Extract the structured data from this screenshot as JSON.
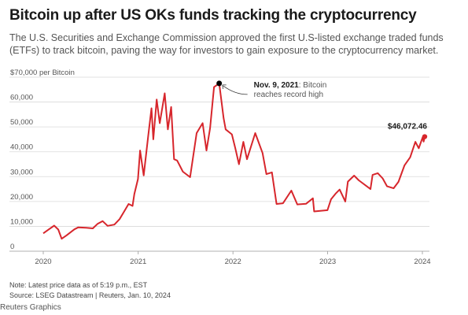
{
  "header": {
    "title": "Bitcoin up after US OKs funds tracking the cryptocurrency",
    "subtitle": "The U.S. Securities and Exchange Commission approved the first U.S-listed exchange traded funds (ETFs) to track bitcoin, paving the way for investors to gain exposure to the cryptocurrency market."
  },
  "footer": {
    "note": "Note: Latest price data as of 5:19 p.m., EST",
    "source": "Source: LSEG Datastream | Reuters, Jan. 10, 2024",
    "credit": "Reuters Graphics"
  },
  "colors": {
    "line": "#d7262c",
    "grid": "#d9d9d9",
    "text": "#555555"
  },
  "chart_data": {
    "type": "line",
    "title": "Bitcoin up after US OKs funds tracking the cryptocurrency",
    "ylabel": "$70,000 per Bitcoin",
    "ylim": [
      0,
      70000
    ],
    "xlim": [
      "2020-01-01",
      "2024-01-10"
    ],
    "x_ticks": [
      "2020",
      "2021",
      "2022",
      "2023",
      "2024"
    ],
    "y_ticks": [
      "0",
      "10,000",
      "20,000",
      "30,000",
      "40,000",
      "50,000",
      "60,000",
      "$70,000 per Bitcoin"
    ],
    "grid": "horizontal",
    "series": [
      {
        "points": [
          [
            "2020-01-01",
            7200
          ],
          [
            "2020-01-20",
            8600
          ],
          [
            "2020-02-12",
            10300
          ],
          [
            "2020-02-28",
            8700
          ],
          [
            "2020-03-12",
            5000
          ],
          [
            "2020-03-31",
            6400
          ],
          [
            "2020-04-30",
            8800
          ],
          [
            "2020-05-15",
            9600
          ],
          [
            "2020-06-15",
            9400
          ],
          [
            "2020-07-10",
            9200
          ],
          [
            "2020-07-28",
            11000
          ],
          [
            "2020-08-17",
            12100
          ],
          [
            "2020-09-05",
            10200
          ],
          [
            "2020-10-01",
            10700
          ],
          [
            "2020-10-21",
            12900
          ],
          [
            "2020-11-05",
            15500
          ],
          [
            "2020-11-25",
            19000
          ],
          [
            "2020-12-10",
            18200
          ],
          [
            "2020-12-17",
            23000
          ],
          [
            "2020-12-31",
            29000
          ],
          [
            "2021-01-08",
            40500
          ],
          [
            "2021-01-22",
            30500
          ],
          [
            "2021-02-08",
            46000
          ],
          [
            "2021-02-21",
            57500
          ],
          [
            "2021-02-28",
            45000
          ],
          [
            "2021-03-13",
            61000
          ],
          [
            "2021-03-25",
            51500
          ],
          [
            "2021-04-13",
            63500
          ],
          [
            "2021-04-25",
            49000
          ],
          [
            "2021-05-08",
            58000
          ],
          [
            "2021-05-19",
            37000
          ],
          [
            "2021-05-31",
            36500
          ],
          [
            "2021-06-22",
            32000
          ],
          [
            "2021-07-20",
            29800
          ],
          [
            "2021-08-14",
            47500
          ],
          [
            "2021-09-06",
            51500
          ],
          [
            "2021-09-21",
            40500
          ],
          [
            "2021-10-05",
            49500
          ],
          [
            "2021-10-20",
            66000
          ],
          [
            "2021-11-09",
            67500
          ],
          [
            "2021-11-26",
            53500
          ],
          [
            "2021-12-04",
            49000
          ],
          [
            "2021-12-28",
            47000
          ],
          [
            "2022-01-10",
            41500
          ],
          [
            "2022-01-24",
            35000
          ],
          [
            "2022-02-10",
            44000
          ],
          [
            "2022-02-24",
            37000
          ],
          [
            "2022-03-28",
            47500
          ],
          [
            "2022-04-25",
            39500
          ],
          [
            "2022-05-10",
            31000
          ],
          [
            "2022-05-31",
            31700
          ],
          [
            "2022-06-18",
            19000
          ],
          [
            "2022-07-13",
            19300
          ],
          [
            "2022-08-14",
            24400
          ],
          [
            "2022-09-06",
            18800
          ],
          [
            "2022-10-10",
            19100
          ],
          [
            "2022-11-05",
            21300
          ],
          [
            "2022-11-10",
            16000
          ],
          [
            "2022-12-31",
            16500
          ],
          [
            "2023-01-14",
            20900
          ],
          [
            "2023-01-31",
            23100
          ],
          [
            "2023-02-16",
            24800
          ],
          [
            "2023-03-10",
            20000
          ],
          [
            "2023-03-20",
            28000
          ],
          [
            "2023-04-13",
            30400
          ],
          [
            "2023-05-01",
            28500
          ],
          [
            "2023-06-15",
            25000
          ],
          [
            "2023-06-23",
            30700
          ],
          [
            "2023-07-13",
            31400
          ],
          [
            "2023-08-01",
            29300
          ],
          [
            "2023-08-18",
            26100
          ],
          [
            "2023-09-12",
            25300
          ],
          [
            "2023-10-01",
            27900
          ],
          [
            "2023-10-24",
            34500
          ],
          [
            "2023-11-15",
            37800
          ],
          [
            "2023-12-05",
            44000
          ],
          [
            "2023-12-18",
            41400
          ],
          [
            "2024-01-02",
            45800
          ],
          [
            "2024-01-06",
            44100
          ],
          [
            "2024-01-10",
            46072.46
          ]
        ]
      }
    ],
    "annotations": [
      {
        "x": "2021-11-09",
        "y": 67500,
        "bold": "Nov. 9, 2021",
        "text": ": Bitcoin reaches record high",
        "line1": ": Bitcoin",
        "line2": "reaches record high"
      },
      {
        "x": "2024-01-10",
        "y": 46072.46,
        "text": "$46,072.46"
      }
    ]
  }
}
